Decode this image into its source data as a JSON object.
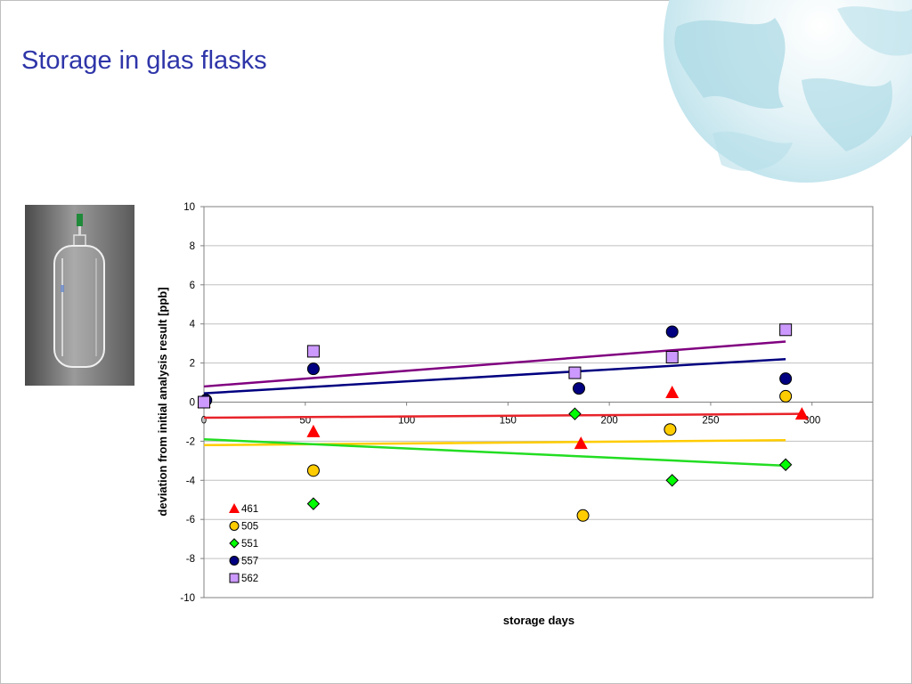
{
  "slide": {
    "title": "Storage in glas flasks"
  },
  "photo": {
    "icon": "glass-flask-photo"
  },
  "colors": {
    "title": "#2e35a8",
    "gridline": "#c0c0c0",
    "plot_border": "#808080"
  },
  "chart_data": {
    "type": "scatter",
    "title": "",
    "xlabel": "storage days",
    "ylabel": "deviation from initial analysis result [ppb]",
    "xlim": [
      0,
      330
    ],
    "ylim": [
      -10,
      10
    ],
    "x_ticks": [
      0,
      50,
      100,
      150,
      200,
      250,
      300
    ],
    "y_ticks": [
      10,
      8,
      6,
      4,
      2,
      0,
      -2,
      -4,
      -6,
      -8,
      -10
    ],
    "grid": true,
    "legend_position": "bottom-left inside plot",
    "series": [
      {
        "name": "461",
        "marker": "triangle",
        "color": "#ff0000",
        "points": [
          [
            0,
            0
          ],
          [
            54,
            -1.5
          ],
          [
            186,
            -2.1
          ],
          [
            231,
            0.5
          ],
          [
            295,
            -0.6
          ]
        ],
        "trendline": {
          "color": "#e8232a",
          "from": [
            0,
            -0.8
          ],
          "to": [
            295,
            -0.6
          ]
        }
      },
      {
        "name": "505",
        "marker": "circle",
        "color": "#ffcc00",
        "points": [
          [
            0,
            0
          ],
          [
            54,
            -3.5
          ],
          [
            187,
            -5.8
          ],
          [
            230,
            -1.4
          ],
          [
            287,
            0.3
          ]
        ],
        "trendline": {
          "color": "#ffcc00",
          "from": [
            0,
            -2.2
          ],
          "to": [
            287,
            -1.95
          ]
        }
      },
      {
        "name": "551",
        "marker": "diamond",
        "color": "#00ff00",
        "points": [
          [
            0,
            0
          ],
          [
            54,
            -5.2
          ],
          [
            183,
            -0.6
          ],
          [
            231,
            -4.0
          ],
          [
            287,
            -3.2
          ]
        ],
        "trendline": {
          "color": "#22dd22",
          "from": [
            0,
            -1.9
          ],
          "to": [
            287,
            -3.25
          ]
        }
      },
      {
        "name": "557",
        "marker": "circle",
        "color": "#000080",
        "points": [
          [
            1,
            0.1
          ],
          [
            54,
            1.7
          ],
          [
            185,
            0.7
          ],
          [
            231,
            3.6
          ],
          [
            287,
            1.2
          ]
        ],
        "trendline": {
          "color": "#000080",
          "from": [
            0,
            0.45
          ],
          "to": [
            287,
            2.2
          ]
        }
      },
      {
        "name": "562",
        "marker": "square",
        "color": "#cc99ff",
        "points": [
          [
            0,
            0.0
          ],
          [
            54,
            2.6
          ],
          [
            183,
            1.5
          ],
          [
            231,
            2.3
          ],
          [
            287,
            3.7
          ]
        ],
        "trendline": {
          "color": "#800080",
          "from": [
            0,
            0.8
          ],
          "to": [
            287,
            3.1
          ]
        }
      }
    ]
  }
}
